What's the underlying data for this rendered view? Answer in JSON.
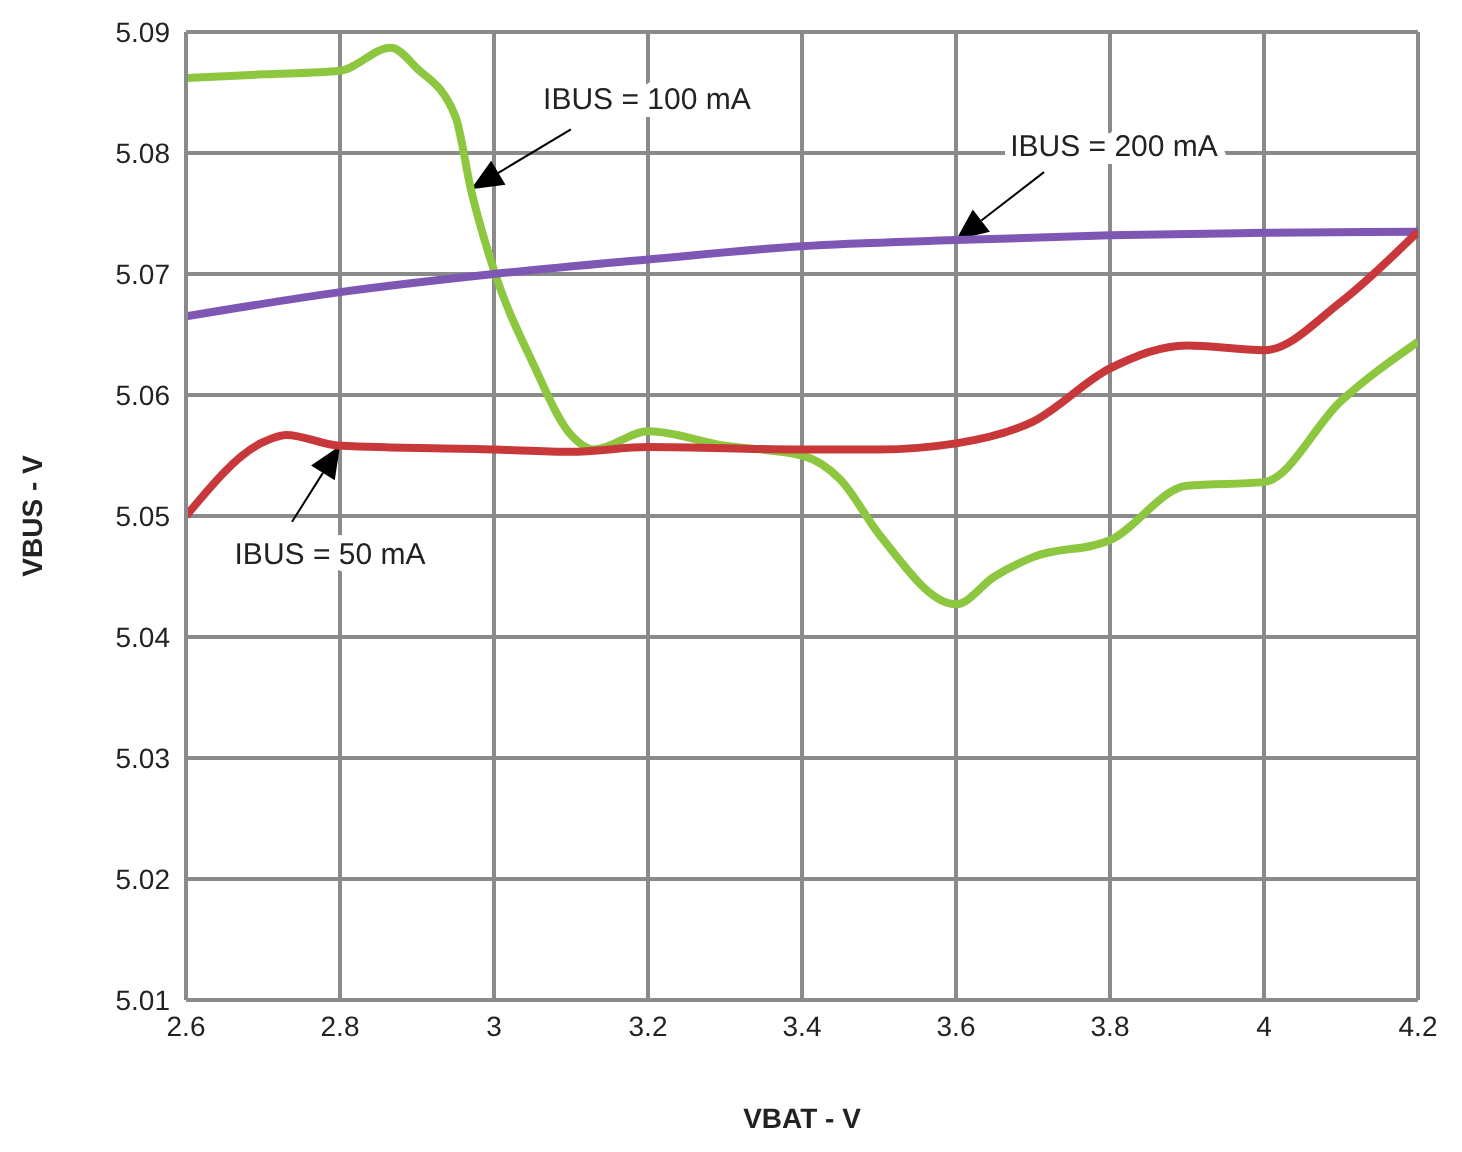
{
  "chart_data": {
    "type": "line",
    "xlabel": "VBAT - V",
    "ylabel": "VBUS - V",
    "xlim": [
      2.6,
      4.2
    ],
    "xticks": [
      2.6,
      2.8,
      3,
      3.2,
      3.4,
      3.6,
      3.8,
      4,
      4.2
    ],
    "ylim": [
      5.01,
      5.09
    ],
    "yticks": [
      5.01,
      5.02,
      5.03,
      5.04,
      5.05,
      5.06,
      5.07,
      5.08,
      5.09
    ],
    "grid": true,
    "legend": false,
    "marker": "none",
    "line_style": "solid",
    "series": [
      {
        "name": "IBUS = 100 mA",
        "color": "#8dc63f",
        "x": [
          2.6,
          2.7,
          2.8,
          2.866,
          2.9,
          2.95,
          2.97,
          3.0,
          3.05,
          3.1,
          3.13,
          3.2,
          3.3,
          3.4,
          3.45,
          3.5,
          3.6,
          3.65,
          3.7,
          3.8,
          3.9,
          4.0,
          4.1,
          4.2
        ],
        "values": [
          5.0862,
          5.0865,
          5.0868,
          5.0887,
          5.087,
          5.083,
          5.077,
          5.0703,
          5.0627,
          5.0567,
          5.0555,
          5.057,
          5.0558,
          5.055,
          5.053,
          5.0485,
          5.0427,
          5.045,
          5.0466,
          5.048,
          5.0525,
          5.0528,
          5.0595,
          5.0644
        ]
      },
      {
        "name": "IBUS = 200 mA",
        "color": "#7e57b5",
        "x": [
          2.6,
          2.8,
          3.0,
          3.2,
          3.4,
          3.6,
          3.8,
          4.0,
          4.2
        ],
        "values": [
          5.0665,
          5.0685,
          5.07,
          5.0712,
          5.0723,
          5.0728,
          5.0732,
          5.0734,
          5.0735
        ]
      },
      {
        "name": "IBUS = 50 mA",
        "color": "#c8383a",
        "x": [
          2.6,
          2.7,
          2.73,
          2.8,
          3.0,
          3.1,
          3.2,
          3.4,
          3.5,
          3.6,
          3.7,
          3.8,
          3.9,
          4.0,
          4.1,
          4.2
        ],
        "values": [
          5.05,
          5.0561,
          5.0567,
          5.0558,
          5.0555,
          5.0553,
          5.0557,
          5.0555,
          5.0555,
          5.056,
          5.0578,
          5.0622,
          5.0641,
          5.0637,
          5.0677,
          5.0735
        ]
      }
    ]
  }
}
